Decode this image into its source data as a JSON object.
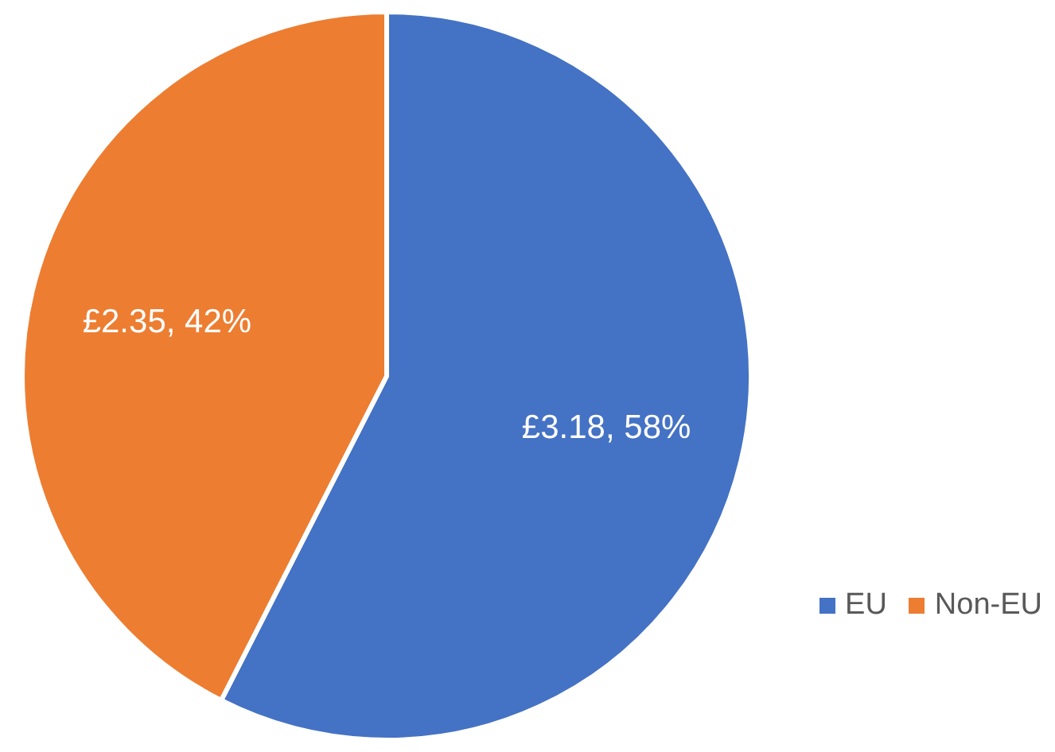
{
  "chart_data": {
    "type": "pie",
    "categories": [
      "EU",
      "Non-EU"
    ],
    "values": [
      3.18,
      2.35
    ],
    "colors": [
      "#4472c4",
      "#ed7d31"
    ],
    "value_labels": [
      "£3.18, 58%",
      "£2.35, 42%"
    ],
    "legend": "bottom right"
  }
}
